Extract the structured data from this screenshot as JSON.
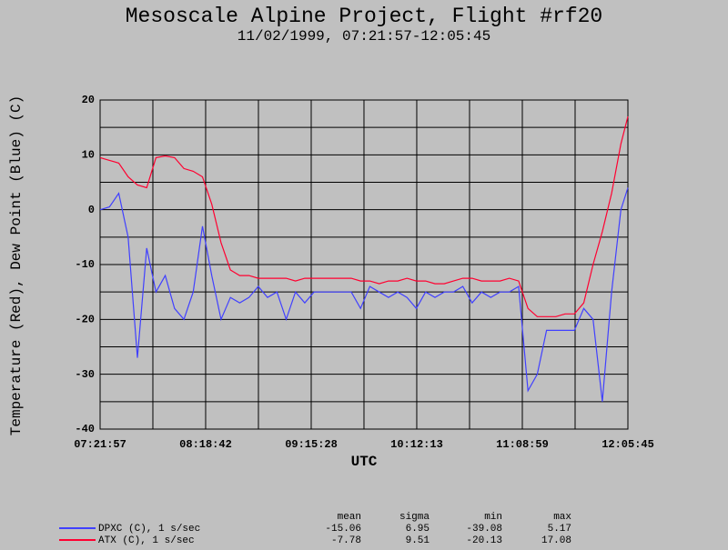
{
  "chart_data": {
    "type": "line",
    "title": "Mesoscale Alpine Project, Flight #rf20",
    "subtitle": "11/02/1999, 07:21:57-12:05:45",
    "x_label": "UTC",
    "y_label": "Temperature (Red), Dew Point (Blue) (C)",
    "x": [
      "07:22:00",
      "07:27:00",
      "07:32:00",
      "07:37:00",
      "07:42:00",
      "07:47:00",
      "07:52:00",
      "07:57:00",
      "08:02:00",
      "08:07:00",
      "08:12:00",
      "08:17:00",
      "08:22:00",
      "08:27:00",
      "08:32:00",
      "08:37:00",
      "08:42:00",
      "08:47:00",
      "08:52:00",
      "08:57:00",
      "09:02:00",
      "09:07:00",
      "09:12:00",
      "09:17:00",
      "09:22:00",
      "09:27:00",
      "09:32:00",
      "09:37:00",
      "09:42:00",
      "09:47:00",
      "09:52:00",
      "09:57:00",
      "10:02:00",
      "10:07:00",
      "10:12:00",
      "10:17:00",
      "10:22:00",
      "10:27:00",
      "10:32:00",
      "10:37:00",
      "10:42:00",
      "10:47:00",
      "10:52:00",
      "10:57:00",
      "11:02:00",
      "11:07:00",
      "11:12:00",
      "11:17:00",
      "11:22:00",
      "11:27:00",
      "11:32:00",
      "11:37:00",
      "11:42:00",
      "11:47:00",
      "11:52:00",
      "11:57:00",
      "12:02:00",
      "12:05:45"
    ],
    "series": [
      {
        "name": "DPXC (C), 1 s/sec",
        "color": "#4040ff",
        "values": [
          0,
          0.5,
          3,
          -5,
          -27,
          -7,
          -15,
          -12,
          -18,
          -20,
          -15,
          -3,
          -12,
          -20,
          -16,
          -17,
          -16,
          -14,
          -16,
          -15,
          -20,
          -15,
          -17,
          -15,
          -15,
          -15,
          -15,
          -15,
          -18,
          -14,
          -15,
          -16,
          -15,
          -16,
          -18,
          -15,
          -16,
          -15,
          -15,
          -14,
          -17,
          -15,
          -16,
          -15,
          -15,
          -14,
          -33,
          -30,
          -22,
          -22,
          -22,
          -22,
          -18,
          -20,
          -35,
          -15,
          0,
          4
        ],
        "stats": [
          -15.06,
          6.95,
          -39.08,
          5.17
        ]
      },
      {
        "name": "ATX (C), 1 s/sec",
        "color": "#ff0030",
        "values": [
          9.5,
          9,
          8.5,
          6,
          4.5,
          4,
          9.5,
          9.8,
          9.5,
          7.5,
          7,
          6,
          1,
          -6,
          -11,
          -12,
          -12,
          -12.5,
          -12.5,
          -12.5,
          -12.5,
          -13,
          -12.5,
          -12.5,
          -12.5,
          -12.5,
          -12.5,
          -12.5,
          -13,
          -13,
          -13.5,
          -13,
          -13,
          -12.5,
          -13,
          -13,
          -13.5,
          -13.5,
          -13,
          -12.5,
          -12.5,
          -13,
          -13,
          -13,
          -12.5,
          -13,
          -18,
          -19.5,
          -19.5,
          -19.5,
          -19,
          -19,
          -17,
          -10,
          -4,
          3,
          12,
          17
        ],
        "stats": [
          -7.78,
          9.51,
          -20.13,
          17.08
        ]
      }
    ],
    "stats_columns": [
      "mean",
      "sigma",
      "min",
      "max"
    ],
    "xlim": [
      "07:21:57",
      "12:05:45"
    ],
    "xticks": [
      "07:21:57",
      "08:18:42",
      "09:15:28",
      "10:12:13",
      "11:08:59",
      "12:05:45"
    ],
    "ylim": [
      -40,
      20
    ],
    "yticks": [
      20,
      10,
      0,
      -10,
      -20,
      -30,
      -40
    ],
    "grid": true,
    "minor_grid_divisions": 2
  }
}
